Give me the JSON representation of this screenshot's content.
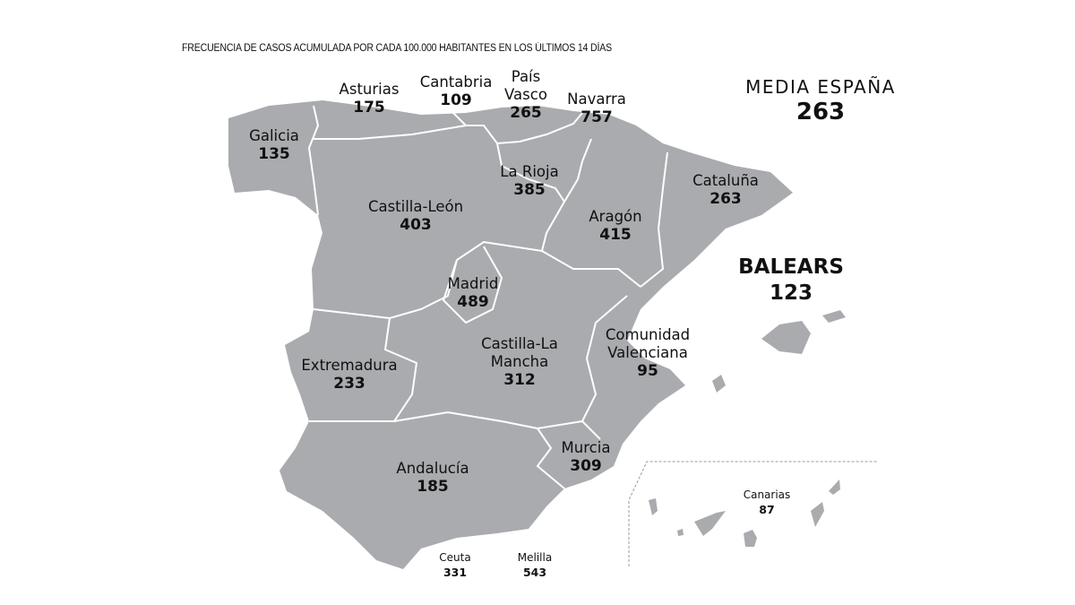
{
  "title": "FRECUENCIA DE CASOS ACUMULADA POR CADA 100.000 HABITANTES EN LOS ÚLTIMOS 14 DÍAS",
  "national_average": {
    "label": "MEDIA ESPAÑA",
    "value": "263"
  },
  "regions": {
    "galicia": {
      "name": "Galicia",
      "value": "135"
    },
    "asturias": {
      "name": "Asturias",
      "value": "175"
    },
    "cantabria": {
      "name": "Cantabria",
      "value": "109"
    },
    "pais_vasco": {
      "name": "País Vasco",
      "value": "265"
    },
    "navarra": {
      "name": "Navarra",
      "value": "757"
    },
    "la_rioja": {
      "name": "La Rioja",
      "value": "385"
    },
    "castilla_leon": {
      "name": "Castilla-León",
      "value": "403"
    },
    "aragon": {
      "name": "Aragón",
      "value": "415"
    },
    "cataluna": {
      "name": "Cataluña",
      "value": "263"
    },
    "balears": {
      "name": "BALEARS",
      "value": "123"
    },
    "madrid": {
      "name": "Madrid",
      "value": "489"
    },
    "castilla_la_mancha": {
      "name": "Castilla-La Mancha",
      "value": "312"
    },
    "extremadura": {
      "name": "Extremadura",
      "value": "233"
    },
    "valenciana": {
      "name": "Comunidad Valenciana",
      "value": "95"
    },
    "murcia": {
      "name": "Murcia",
      "value": "309"
    },
    "andalucia": {
      "name": "Andalucía",
      "value": "185"
    },
    "ceuta": {
      "name": "Ceuta",
      "value": "331"
    },
    "melilla": {
      "name": "Melilla",
      "value": "543"
    },
    "canarias": {
      "name": "Canarias",
      "value": "87"
    }
  },
  "colors": {
    "land": "#a9abae",
    "border": "#ffffff",
    "text": "#111111"
  }
}
